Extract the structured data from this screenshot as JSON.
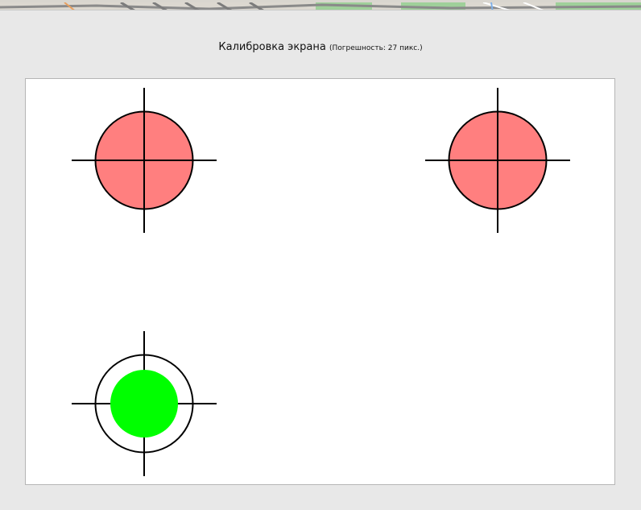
{
  "dialog": {
    "title": "Калибровка экрана",
    "error_label": "(Погрешность: 27 пикс.)"
  },
  "colors": {
    "target_pending": "#ff7f7f",
    "target_done": "#00ff00",
    "crosshair": "#000000"
  },
  "targets": [
    {
      "name": "top-left-target",
      "status": "pending"
    },
    {
      "name": "top-right-target",
      "status": "pending"
    },
    {
      "name": "bottom-left-target",
      "status": "done"
    }
  ]
}
